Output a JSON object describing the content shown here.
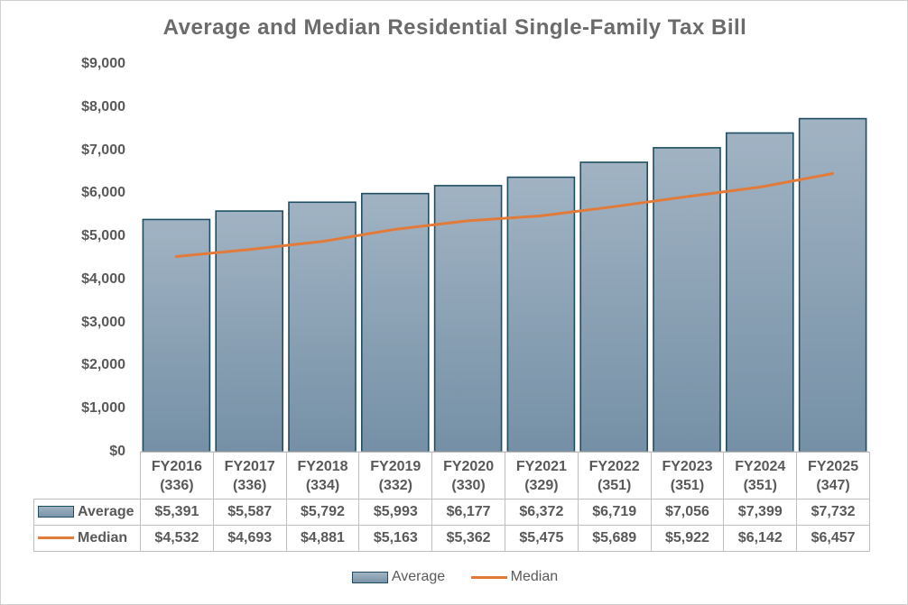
{
  "chart_data": {
    "type": "bar",
    "title": "Average and Median Residential Single-Family Tax Bill",
    "categories": [
      "FY2016",
      "FY2017",
      "FY2018",
      "FY2019",
      "FY2020",
      "FY2021",
      "FY2022",
      "FY2023",
      "FY2024",
      "FY2025"
    ],
    "category_counts": [
      "(336)",
      "(336)",
      "(334)",
      "(332)",
      "(330)",
      "(329)",
      "(351)",
      "(351)",
      "(351)",
      "(347)"
    ],
    "series": [
      {
        "name": "Average",
        "kind": "bar",
        "color": "#8aa1b4",
        "border": "#1f4e63",
        "values": [
          5391,
          5587,
          5792,
          5993,
          6177,
          6372,
          6719,
          7056,
          7399,
          7732
        ],
        "labels": [
          "$5,391",
          "$5,587",
          "$5,792",
          "$5,993",
          "$6,177",
          "$6,372",
          "$6,719",
          "$7,056",
          "$7,399",
          "$7,732"
        ]
      },
      {
        "name": "Median",
        "kind": "line",
        "color": "#e27a3a",
        "values": [
          4532,
          4693,
          4881,
          5163,
          5362,
          5475,
          5689,
          5922,
          6142,
          6457
        ],
        "labels": [
          "$4,532",
          "$4,693",
          "$4,881",
          "$5,163",
          "$5,362",
          "$5,475",
          "$5,689",
          "$5,922",
          "$6,142",
          "$6,457"
        ]
      }
    ],
    "ylim": [
      0,
      9000
    ],
    "yticks": [
      0,
      1000,
      2000,
      3000,
      4000,
      5000,
      6000,
      7000,
      8000,
      9000
    ],
    "ytick_labels": [
      "$0",
      "$1,000",
      "$2,000",
      "$3,000",
      "$4,000",
      "$5,000",
      "$6,000",
      "$7,000",
      "$8,000",
      "$9,000"
    ],
    "xlabel": "",
    "ylabel": "",
    "grid": false,
    "legend_position": "bottom",
    "data_table": true
  }
}
